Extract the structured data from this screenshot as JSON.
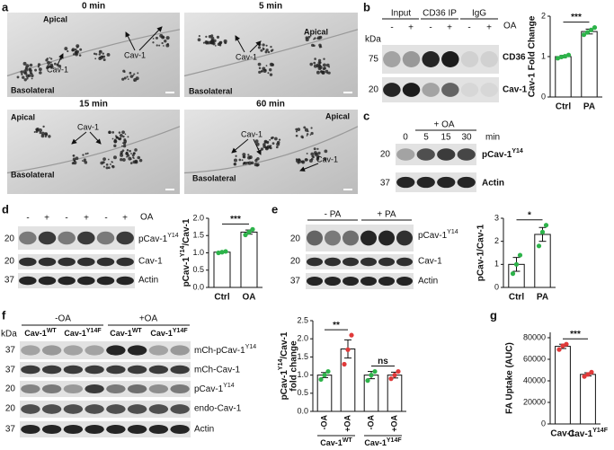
{
  "panels": {
    "labels": [
      "a",
      "b",
      "c",
      "d",
      "e",
      "f",
      "g"
    ]
  },
  "micrographs": [
    {
      "title": "0 min",
      "labels": [
        "Apical",
        "Cav-1",
        "Cav-1",
        "Basolateral"
      ]
    },
    {
      "title": "5 min",
      "labels": [
        "Apical",
        "Cav-1",
        "Basolateral"
      ]
    },
    {
      "title": "15 min",
      "labels": [
        "Apical",
        "Cav-1",
        "Basolateral"
      ]
    },
    {
      "title": "60 min",
      "labels": [
        "Apical",
        "Cav-1",
        "Cav-1",
        "Basolateral"
      ]
    }
  ],
  "blots": {
    "b": {
      "headers": [
        "Input",
        "CD36 IP",
        "IgG"
      ],
      "lanes": [
        "-",
        "+",
        "-",
        "+",
        "-",
        "+"
      ],
      "treatment": "OA",
      "kda": "kDa",
      "markers": [
        "75",
        "20"
      ],
      "bands": [
        "CD36",
        "Cav-1"
      ]
    },
    "c": {
      "treatment": "+ OA",
      "lanes": [
        "0",
        "5",
        "15",
        "30"
      ],
      "unit": "min",
      "markers": [
        "20",
        "37"
      ],
      "bands": [
        [
          "pCav-1",
          {
            "sup": "Y14"
          }
        ],
        "Actin"
      ]
    },
    "d": {
      "lanes": [
        "-",
        "+",
        "-",
        "+",
        "-",
        "+"
      ],
      "treatment": "OA",
      "markers": [
        "20",
        "20",
        "37"
      ],
      "bands": [
        [
          "pCav-1",
          {
            "sup": "Y14"
          }
        ],
        "Cav-1",
        "Actin"
      ]
    },
    "e": {
      "groups": [
        "- PA",
        "+ PA"
      ],
      "markers": [
        "20",
        "20",
        "37"
      ],
      "bands": [
        [
          "pCav-1",
          {
            "sup": "Y14"
          }
        ],
        "Cav-1",
        "Actin"
      ]
    },
    "f": {
      "groups": [
        "-OA",
        "+OA"
      ],
      "lanes": [
        [
          "Cav-1",
          {
            "sup": "WT"
          }
        ],
        [
          "Cav-1",
          {
            "sup": "Y14F"
          }
        ],
        [
          "Cav-1",
          {
            "sup": "WT"
          }
        ],
        [
          "Cav-1",
          {
            "sup": "Y14F"
          }
        ]
      ],
      "kda": "kDa",
      "markers": [
        "37",
        "37",
        "20",
        "20",
        "37"
      ],
      "bands": [
        [
          "mCh-pCav-1",
          {
            "sup": "Y14"
          }
        ],
        "mCh-Cav-1",
        [
          "pCav-1",
          {
            "sup": "Y14"
          }
        ],
        "endo-Cav-1",
        "Actin"
      ]
    }
  },
  "chart_data": [
    {
      "type": "bar",
      "ylabel": [
        "Cav-1 Fold Change"
      ],
      "categories": [
        "Ctrl",
        "PA"
      ],
      "values": [
        1.0,
        1.62
      ],
      "errors": [
        0.03,
        0.06
      ],
      "points": [
        [
          0.96,
          0.99,
          1.01,
          1.04
        ],
        [
          1.54,
          1.6,
          1.66,
          1.72
        ]
      ],
      "point_colors": [
        "#2db34a",
        "#2db34a"
      ],
      "color": "#ffffff",
      "ylim": [
        0,
        2
      ],
      "yticks": [
        0,
        1,
        2
      ],
      "annotations": [
        "***"
      ]
    },
    {
      "type": "bar",
      "ylabel": [
        [
          "pCav-1",
          {
            "sup": "Y14"
          },
          "/Cav-1"
        ]
      ],
      "categories": [
        "Ctrl",
        "OA"
      ],
      "values": [
        1.02,
        1.6
      ],
      "errors": [
        0.02,
        0.06
      ],
      "points": [
        [
          1.0,
          1.02,
          1.04
        ],
        [
          1.52,
          1.6,
          1.68
        ]
      ],
      "point_colors": [
        "#2db34a",
        "#2db34a"
      ],
      "color": "#ffffff",
      "ylim": [
        0,
        2
      ],
      "yticks": [
        {
          "value": 0,
          "label": "0.0"
        },
        {
          "value": 0.5,
          "label": "0.5"
        },
        {
          "value": 1,
          "label": "1.0"
        },
        {
          "value": 1.5,
          "label": "1.5"
        },
        {
          "value": 2,
          "label": "2.0"
        }
      ],
      "annotations": [
        "***"
      ]
    },
    {
      "type": "bar",
      "ylabel": [
        "pCav-1/Cav-1"
      ],
      "categories": [
        "Ctrl",
        "PA"
      ],
      "values": [
        1.0,
        2.3
      ],
      "errors": [
        0.3,
        0.3
      ],
      "points": [
        [
          0.6,
          1.0,
          1.4
        ],
        [
          1.8,
          2.4,
          2.7
        ]
      ],
      "point_colors": [
        "#2db34a",
        "#2db34a"
      ],
      "color": "#ffffff",
      "ylim": [
        0,
        3
      ],
      "yticks": [
        0,
        1,
        2,
        3
      ],
      "annotations": [
        "*"
      ]
    },
    {
      "type": "bar",
      "ylabel": [
        [
          "pCav-1",
          {
            "sup": "Y14"
          },
          "/Cav-1"
        ],
        "fold change"
      ],
      "categories": [
        "-OA",
        "+OA",
        "-OA",
        "+OA"
      ],
      "groups": [
        [
          "Cav-1",
          {
            "sup": "WT"
          }
        ],
        [
          "Cav-1",
          {
            "sup": "Y14F"
          }
        ]
      ],
      "values": [
        1.0,
        1.72,
        1.0,
        1.0
      ],
      "errors": [
        0.07,
        0.25,
        0.1,
        0.08
      ],
      "points": [
        [
          0.88,
          1.0,
          1.1
        ],
        [
          1.3,
          1.7,
          2.1
        ],
        [
          0.85,
          1.0,
          1.1
        ],
        [
          0.9,
          1.0,
          1.1
        ]
      ],
      "point_colors": [
        "#2db34a",
        "#e03a3a",
        "#2db34a",
        "#e03a3a"
      ],
      "color": "#ffffff",
      "ylim": [
        0,
        2.5
      ],
      "yticks": [
        {
          "value": 0,
          "label": "0.0"
        },
        {
          "value": 0.5,
          "label": "0.5"
        },
        {
          "value": 1,
          "label": "1.0"
        },
        {
          "value": 1.5,
          "label": "1.5"
        },
        {
          "value": 2,
          "label": "2.0"
        },
        {
          "value": 2.5,
          "label": "2.5"
        }
      ],
      "rotated_labels": true,
      "annotations": [
        "**",
        "ns"
      ]
    },
    {
      "type": "bar",
      "ylabel": [
        "FA Uptake (AUC)"
      ],
      "categories": [
        "Cav-1",
        [
          "Cav-1",
          {
            "sup": "Y14F"
          }
        ]
      ],
      "values": [
        72000,
        46000
      ],
      "errors": [
        2000,
        1500
      ],
      "points": [
        [
          69000,
          72500,
          74000
        ],
        [
          44000,
          46000,
          48000
        ]
      ],
      "point_colors": [
        "#e03a3a",
        "#e03a3a"
      ],
      "color": "#ffffff",
      "ylim": [
        0,
        85000
      ],
      "yticks": [
        0,
        20000,
        40000,
        60000,
        80000
      ],
      "annotations": [
        "***"
      ]
    }
  ]
}
